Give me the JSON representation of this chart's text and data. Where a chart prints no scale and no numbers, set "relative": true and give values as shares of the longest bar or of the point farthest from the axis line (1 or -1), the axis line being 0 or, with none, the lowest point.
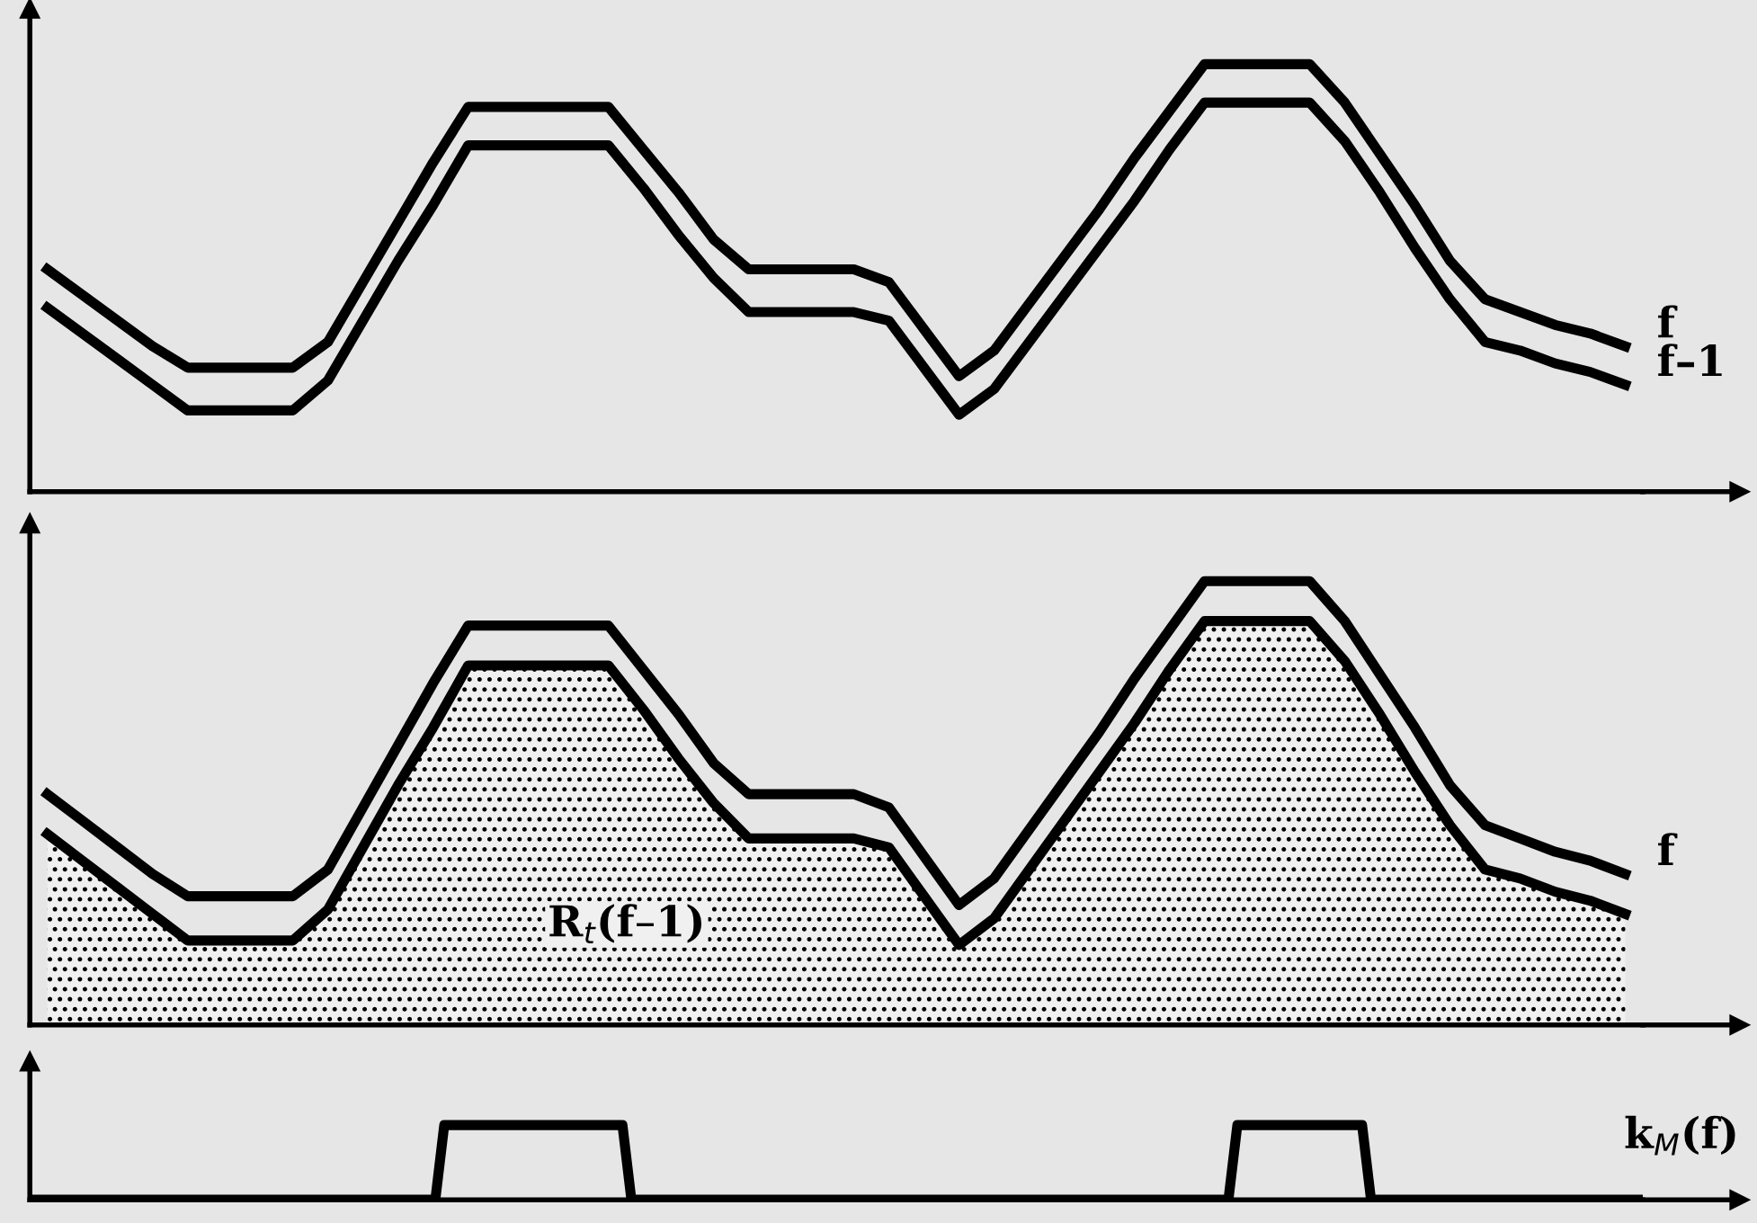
{
  "chart_data": [
    {
      "type": "line",
      "relative": true,
      "tick_labels": false,
      "categories": [
        null,
        null,
        null,
        null,
        null,
        null,
        null,
        null,
        null,
        null,
        null,
        null,
        null,
        null,
        null,
        null,
        null,
        null,
        null,
        null,
        null,
        null,
        null,
        null,
        null,
        null,
        null,
        null,
        null,
        null,
        null,
        null,
        null,
        null,
        null,
        null,
        null,
        null,
        null,
        null,
        null,
        null,
        null,
        null,
        null,
        null
      ],
      "series": [
        {
          "name": "f",
          "color": "#000000",
          "values": [
            0.52,
            0.46,
            0.4,
            0.34,
            0.29,
            0.29,
            0.29,
            0.29,
            0.35,
            0.49,
            0.63,
            0.77,
            0.9,
            0.9,
            0.9,
            0.9,
            0.9,
            0.8,
            0.7,
            0.59,
            0.52,
            0.52,
            0.52,
            0.52,
            0.49,
            0.38,
            0.27,
            0.33,
            0.44,
            0.55,
            0.66,
            0.78,
            0.89,
            1,
            1,
            1,
            1,
            0.91,
            0.79,
            0.67,
            0.54,
            0.45,
            0.42,
            0.39,
            0.37,
            0.34
          ]
        },
        {
          "name": "f–1",
          "color": "#000000",
          "values": [
            0.43,
            0.37,
            0.31,
            0.25,
            0.19,
            0.19,
            0.19,
            0.19,
            0.26,
            0.4,
            0.54,
            0.67,
            0.81,
            0.81,
            0.81,
            0.81,
            0.81,
            0.71,
            0.6,
            0.5,
            0.42,
            0.42,
            0.42,
            0.42,
            0.4,
            0.29,
            0.18,
            0.24,
            0.35,
            0.46,
            0.57,
            0.68,
            0.8,
            0.91,
            0.91,
            0.91,
            0.91,
            0.82,
            0.7,
            0.57,
            0.45,
            0.35,
            0.33,
            0.3,
            0.28,
            0.25
          ]
        }
      ]
    },
    {
      "type": "line",
      "relative": true,
      "tick_labels": false,
      "categories": [
        null,
        null,
        null,
        null,
        null,
        null,
        null,
        null,
        null,
        null,
        null,
        null,
        null,
        null,
        null,
        null,
        null,
        null,
        null,
        null,
        null,
        null,
        null,
        null,
        null,
        null,
        null,
        null,
        null,
        null,
        null,
        null,
        null,
        null,
        null,
        null,
        null,
        null,
        null,
        null,
        null,
        null,
        null,
        null,
        null,
        null
      ],
      "annotations": [
        "R$_{t}$(f–1)"
      ],
      "series": [
        {
          "name": "f",
          "color": "#000000",
          "values": [
            0.52,
            0.46,
            0.4,
            0.34,
            0.29,
            0.29,
            0.29,
            0.29,
            0.35,
            0.49,
            0.63,
            0.77,
            0.9,
            0.9,
            0.9,
            0.9,
            0.9,
            0.8,
            0.7,
            0.59,
            0.52,
            0.52,
            0.52,
            0.52,
            0.49,
            0.38,
            0.27,
            0.33,
            0.44,
            0.55,
            0.66,
            0.78,
            0.89,
            1,
            1,
            1,
            1,
            0.91,
            0.79,
            0.67,
            0.54,
            0.45,
            0.42,
            0.39,
            0.37,
            0.34
          ]
        },
        {
          "type": "area",
          "color": "#000000",
          "values": [
            0.43,
            0.37,
            0.31,
            0.25,
            0.19,
            0.19,
            0.19,
            0.19,
            0.26,
            0.4,
            0.54,
            0.67,
            0.81,
            0.81,
            0.81,
            0.81,
            0.81,
            0.71,
            0.6,
            0.5,
            0.42,
            0.42,
            0.42,
            0.42,
            0.4,
            0.29,
            0.18,
            0.24,
            0.35,
            0.46,
            0.57,
            0.68,
            0.8,
            0.91,
            0.91,
            0.91,
            0.91,
            0.82,
            0.7,
            0.57,
            0.45,
            0.35,
            0.33,
            0.3,
            0.28,
            0.25
          ]
        }
      ]
    },
    {
      "type": "line",
      "relative": true,
      "tick_labels": false,
      "categories": [
        null,
        null,
        null,
        null,
        null,
        null,
        null,
        null,
        null,
        null,
        null,
        null,
        null,
        null,
        null,
        null,
        null,
        null,
        null,
        null,
        null,
        null,
        null,
        null,
        null,
        null,
        null,
        null,
        null,
        null,
        null,
        null,
        null,
        null,
        null,
        null,
        null,
        null,
        null,
        null,
        null,
        null,
        null,
        null,
        null,
        null,
        null,
        null,
        null,
        null,
        null,
        null,
        null,
        null,
        null,
        null,
        null,
        null,
        null,
        null,
        null,
        null,
        null,
        null,
        null,
        null,
        null,
        null,
        null,
        null,
        null,
        null,
        null,
        null,
        null,
        null,
        null,
        null,
        null,
        null,
        null,
        null,
        null,
        null,
        null,
        null,
        null,
        null,
        null,
        null,
        null,
        null,
        null,
        null,
        null,
        null,
        null,
        null,
        null,
        null,
        null,
        null,
        null,
        null,
        null,
        null,
        null,
        null,
        null,
        null,
        null,
        null,
        null,
        null,
        null,
        null,
        null,
        null,
        null,
        null,
        null,
        null,
        null,
        null,
        null,
        null,
        null,
        null,
        null,
        null,
        null,
        null,
        null,
        null,
        null,
        null,
        null,
        null,
        null,
        null,
        null,
        null,
        null,
        null,
        null,
        null,
        null,
        null,
        null,
        null,
        null,
        null,
        null,
        null,
        null,
        null,
        null,
        null,
        null,
        null,
        null,
        null,
        null,
        null,
        null,
        null,
        null,
        null,
        null,
        null,
        null,
        null,
        null,
        null,
        null,
        null,
        null,
        null,
        null,
        null,
        null
      ],
      "series": [
        {
          "name": "k$_{M}$(f)",
          "color": "#000000",
          "values": [
            0,
            0,
            0,
            0,
            0,
            0,
            0,
            0,
            0,
            0,
            0,
            0,
            0,
            0,
            0,
            0,
            0,
            0,
            0,
            0,
            0,
            0,
            0,
            0,
            0,
            0,
            0,
            0,
            0,
            0,
            0,
            0,
            0,
            0,
            0,
            0,
            0,
            0,
            0,
            0,
            0,
            0,
            0,
            0,
            0,
            0,
            1,
            1,
            1,
            1,
            1,
            1,
            1,
            1,
            1,
            1,
            1,
            1,
            1,
            1,
            1,
            1,
            1,
            1,
            1,
            1,
            1,
            0,
            0,
            0,
            0,
            0,
            0,
            0,
            0,
            0,
            0,
            0,
            0,
            0,
            0,
            0,
            0,
            0,
            0,
            0,
            0,
            0,
            0,
            0,
            0,
            0,
            0,
            0,
            0,
            0,
            0,
            0,
            0,
            0,
            0,
            0,
            0,
            0,
            0,
            0,
            0,
            0,
            0,
            0,
            0,
            0,
            0,
            0,
            0,
            0,
            0,
            0,
            0,
            0,
            0,
            0,
            0,
            0,
            0,
            0,
            0,
            0,
            0,
            0,
            0,
            0,
            0,
            0,
            0,
            1,
            1,
            1,
            1,
            1,
            1,
            1,
            1,
            1,
            1,
            1,
            1,
            1,
            1,
            1,
            0,
            0,
            0,
            0,
            0,
            0,
            0,
            0,
            0,
            0,
            0,
            0,
            0,
            0,
            0,
            0,
            0,
            0,
            0,
            0,
            0,
            0,
            0,
            0,
            0,
            0,
            0,
            0,
            0,
            0,
            0
          ]
        }
      ]
    }
  ]
}
